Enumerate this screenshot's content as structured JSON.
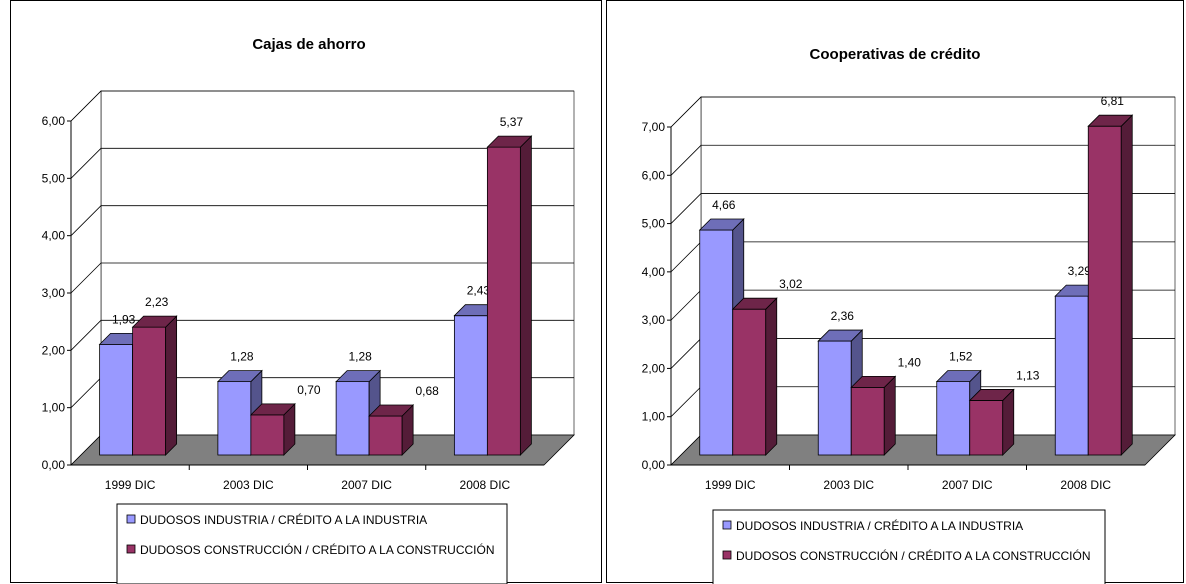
{
  "chart_data": [
    {
      "type": "bar",
      "title": "Cajas de ahorro",
      "categories": [
        "1999 DIC",
        "2003 DIC",
        "2007 DIC",
        "2008 DIC"
      ],
      "series": [
        {
          "name": "DUDOSOS INDUSTRIA / CRÉDITO A LA INDUSTRIA",
          "values": [
            1.93,
            1.28,
            1.28,
            2.43
          ],
          "labels": [
            "1,93",
            "1,28",
            "1,28",
            "2,43"
          ]
        },
        {
          "name": "DUDOSOS CONSTRUCCIÓN / CRÉDITO A LA CONSTRUCCIÓN",
          "values": [
            2.23,
            0.7,
            0.68,
            5.37
          ],
          "labels": [
            "2,23",
            "0,70",
            "0,68",
            "5,37"
          ]
        }
      ],
      "ylim": [
        0,
        6
      ],
      "ytick_labels": [
        "0,00",
        "1,00",
        "2,00",
        "3,00",
        "4,00",
        "5,00",
        "6,00"
      ],
      "xlabel": "",
      "ylabel": "",
      "grid": true,
      "legend_position": "bottom",
      "style": "3d-clustered-column"
    },
    {
      "type": "bar",
      "title": "Cooperativas de crédito",
      "categories": [
        "1999 DIC",
        "2003 DIC",
        "2007 DIC",
        "2008 DIC"
      ],
      "series": [
        {
          "name": "DUDOSOS INDUSTRIA / CRÉDITO A LA INDUSTRIA",
          "values": [
            4.66,
            2.36,
            1.52,
            3.29
          ],
          "labels": [
            "4,66",
            "2,36",
            "1,52",
            "3,29"
          ]
        },
        {
          "name": "DUDOSOS CONSTRUCCIÓN / CRÉDITO A LA CONSTRUCCIÓN",
          "values": [
            3.02,
            1.4,
            1.13,
            6.81
          ],
          "labels": [
            "3,02",
            "1,40",
            "1,13",
            "6,81"
          ]
        }
      ],
      "ylim": [
        0,
        7
      ],
      "ytick_labels": [
        "0,00",
        "1,00",
        "2,00",
        "3,00",
        "4,00",
        "5,00",
        "6,00",
        "7,00"
      ],
      "xlabel": "",
      "ylabel": "",
      "grid": true,
      "legend_position": "bottom",
      "style": "3d-clustered-column"
    }
  ],
  "colors": {
    "series_industria": "#9999ff",
    "series_construccion": "#993366",
    "floor": "#808080",
    "gridline": "#000000"
  }
}
